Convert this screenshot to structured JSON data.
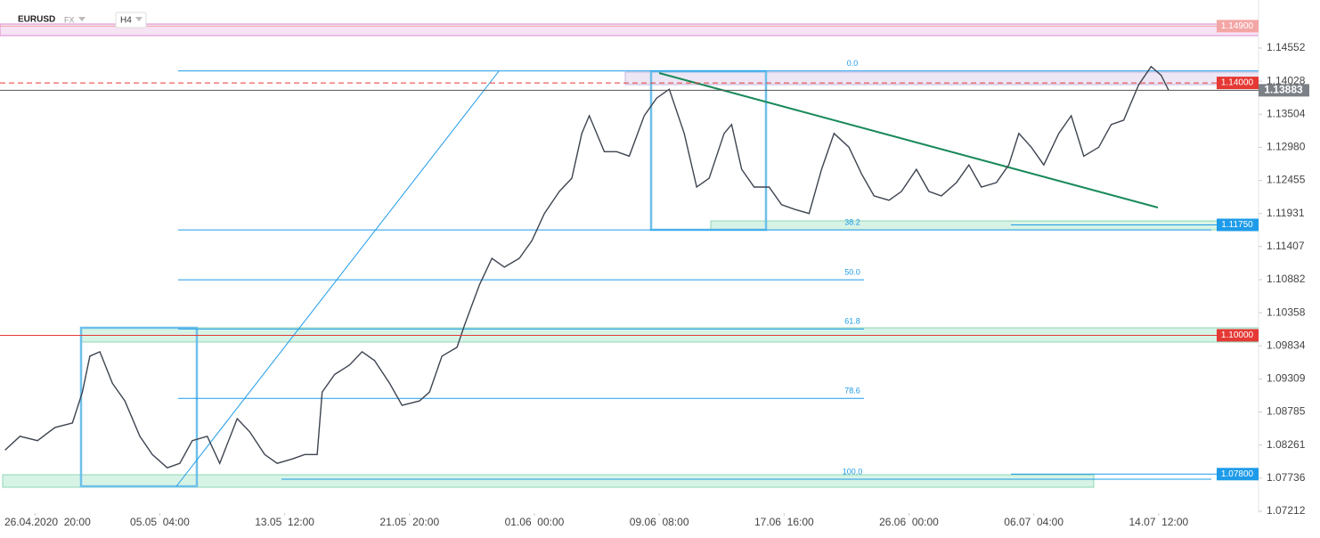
{
  "header": {
    "symbol": "EURUSD",
    "exchange": "FX",
    "timeframe": "H4"
  },
  "chart_data": {
    "type": "line",
    "x": [
      -17,
      -11,
      -4,
      3,
      10,
      14,
      17,
      21,
      26,
      31,
      37,
      42,
      48,
      53,
      58,
      64,
      69,
      76,
      81,
      87,
      92,
      98,
      103,
      108,
      110,
      115,
      121,
      126,
      131,
      137,
      142,
      149,
      153,
      158,
      164,
      167,
      173,
      178,
      183,
      189,
      194,
      199,
      205,
      210,
      214,
      217,
      223,
      228,
      233,
      239,
      244,
      249,
      255,
      260,
      265,
      271,
      274,
      278,
      283,
      289,
      294,
      299,
      305,
      310,
      315,
      321,
      326,
      331,
      337,
      342,
      348,
      353,
      358,
      364,
      369,
      374,
      380,
      385,
      389,
      394,
      399,
      405,
      410,
      415,
      421,
      426,
      431,
      437,
      442,
      446,
      449
    ],
    "values": [
      1.0818,
      1.084,
      1.0833,
      1.0854,
      1.0861,
      1.091,
      1.0967,
      1.0974,
      1.0924,
      1.0896,
      1.084,
      1.0811,
      1.079,
      1.0797,
      1.0833,
      1.084,
      1.0797,
      1.0868,
      1.0847,
      1.0811,
      1.0797,
      1.0804,
      1.0811,
      1.0811,
      1.091,
      1.0938,
      1.0953,
      1.0974,
      1.096,
      1.0924,
      1.0889,
      1.0896,
      1.091,
      1.0967,
      1.0981,
      1.1016,
      1.108,
      1.1122,
      1.1108,
      1.1122,
      1.115,
      1.1193,
      1.1228,
      1.1249,
      1.132,
      1.1348,
      1.1291,
      1.1291,
      1.1284,
      1.1348,
      1.1376,
      1.139,
      1.132,
      1.1235,
      1.1249,
      1.132,
      1.1334,
      1.1263,
      1.1235,
      1.1235,
      1.1207,
      1.12,
      1.1193,
      1.1263,
      1.132,
      1.1298,
      1.1256,
      1.1221,
      1.1214,
      1.1228,
      1.1263,
      1.1228,
      1.1221,
      1.1242,
      1.127,
      1.1235,
      1.1242,
      1.127,
      1.132,
      1.1298,
      1.127,
      1.132,
      1.1348,
      1.1284,
      1.1298,
      1.1334,
      1.1341,
      1.1397,
      1.1426,
      1.1412,
      1.13883
    ],
    "color": "#3d4450",
    "xlim": [
      -19,
      485
    ],
    "xticks": [
      {
        "value": -5,
        "label": "26.04.2020  20:00"
      },
      {
        "value": 45,
        "label": "05.05  04:00"
      },
      {
        "value": 95,
        "label": "13.05  12:00"
      },
      {
        "value": 145,
        "label": "21.05  20:00"
      },
      {
        "value": 195,
        "label": "01.06  00:00"
      },
      {
        "value": 245,
        "label": "09.06  08:00"
      },
      {
        "value": 295,
        "label": "17.06  16:00"
      },
      {
        "value": 345,
        "label": "26.06  00:00"
      },
      {
        "value": 395,
        "label": "06.07  04:00"
      },
      {
        "value": 445,
        "label": "14.07  12:00"
      }
    ],
    "ylim": [
      1.07183,
      1.15314
    ],
    "yticks": [
      1.14552,
      1.14028,
      1.13504,
      {
        "value": 1.1298,
        "label": "1.12980"
      },
      1.12455,
      1.11931,
      1.11407,
      1.10882,
      1.10358,
      1.09834,
      1.09309,
      1.08785,
      1.08261,
      1.07736,
      1.07212
    ],
    "levels": [
      {
        "value": 1.149,
        "label": "1.14900",
        "color": "#f4a6a6"
      },
      {
        "value": 1.14,
        "label": "1.14000",
        "color": "#e53935"
      },
      {
        "value": 1.13883,
        "label": "1.13883",
        "color": "#7b7f86"
      },
      {
        "value": 1.1175,
        "label": "1.11750",
        "color": "#1e9be9"
      },
      {
        "value": 1.1,
        "label": "1.10000",
        "color": "#e53935"
      },
      {
        "value": 1.078,
        "label": "1.07800",
        "color": "#1e9be9"
      }
    ],
    "fib": [
      {
        "value": 1.1419,
        "label": "0.0"
      },
      {
        "value": 1.1167,
        "label": "38.2"
      },
      {
        "value": 1.1088,
        "label": "50.0"
      },
      {
        "value": 1.101,
        "label": "61.8"
      },
      {
        "value": 1.09,
        "label": "78.6"
      },
      {
        "value": 1.0772,
        "label": "100.0"
      }
    ]
  }
}
